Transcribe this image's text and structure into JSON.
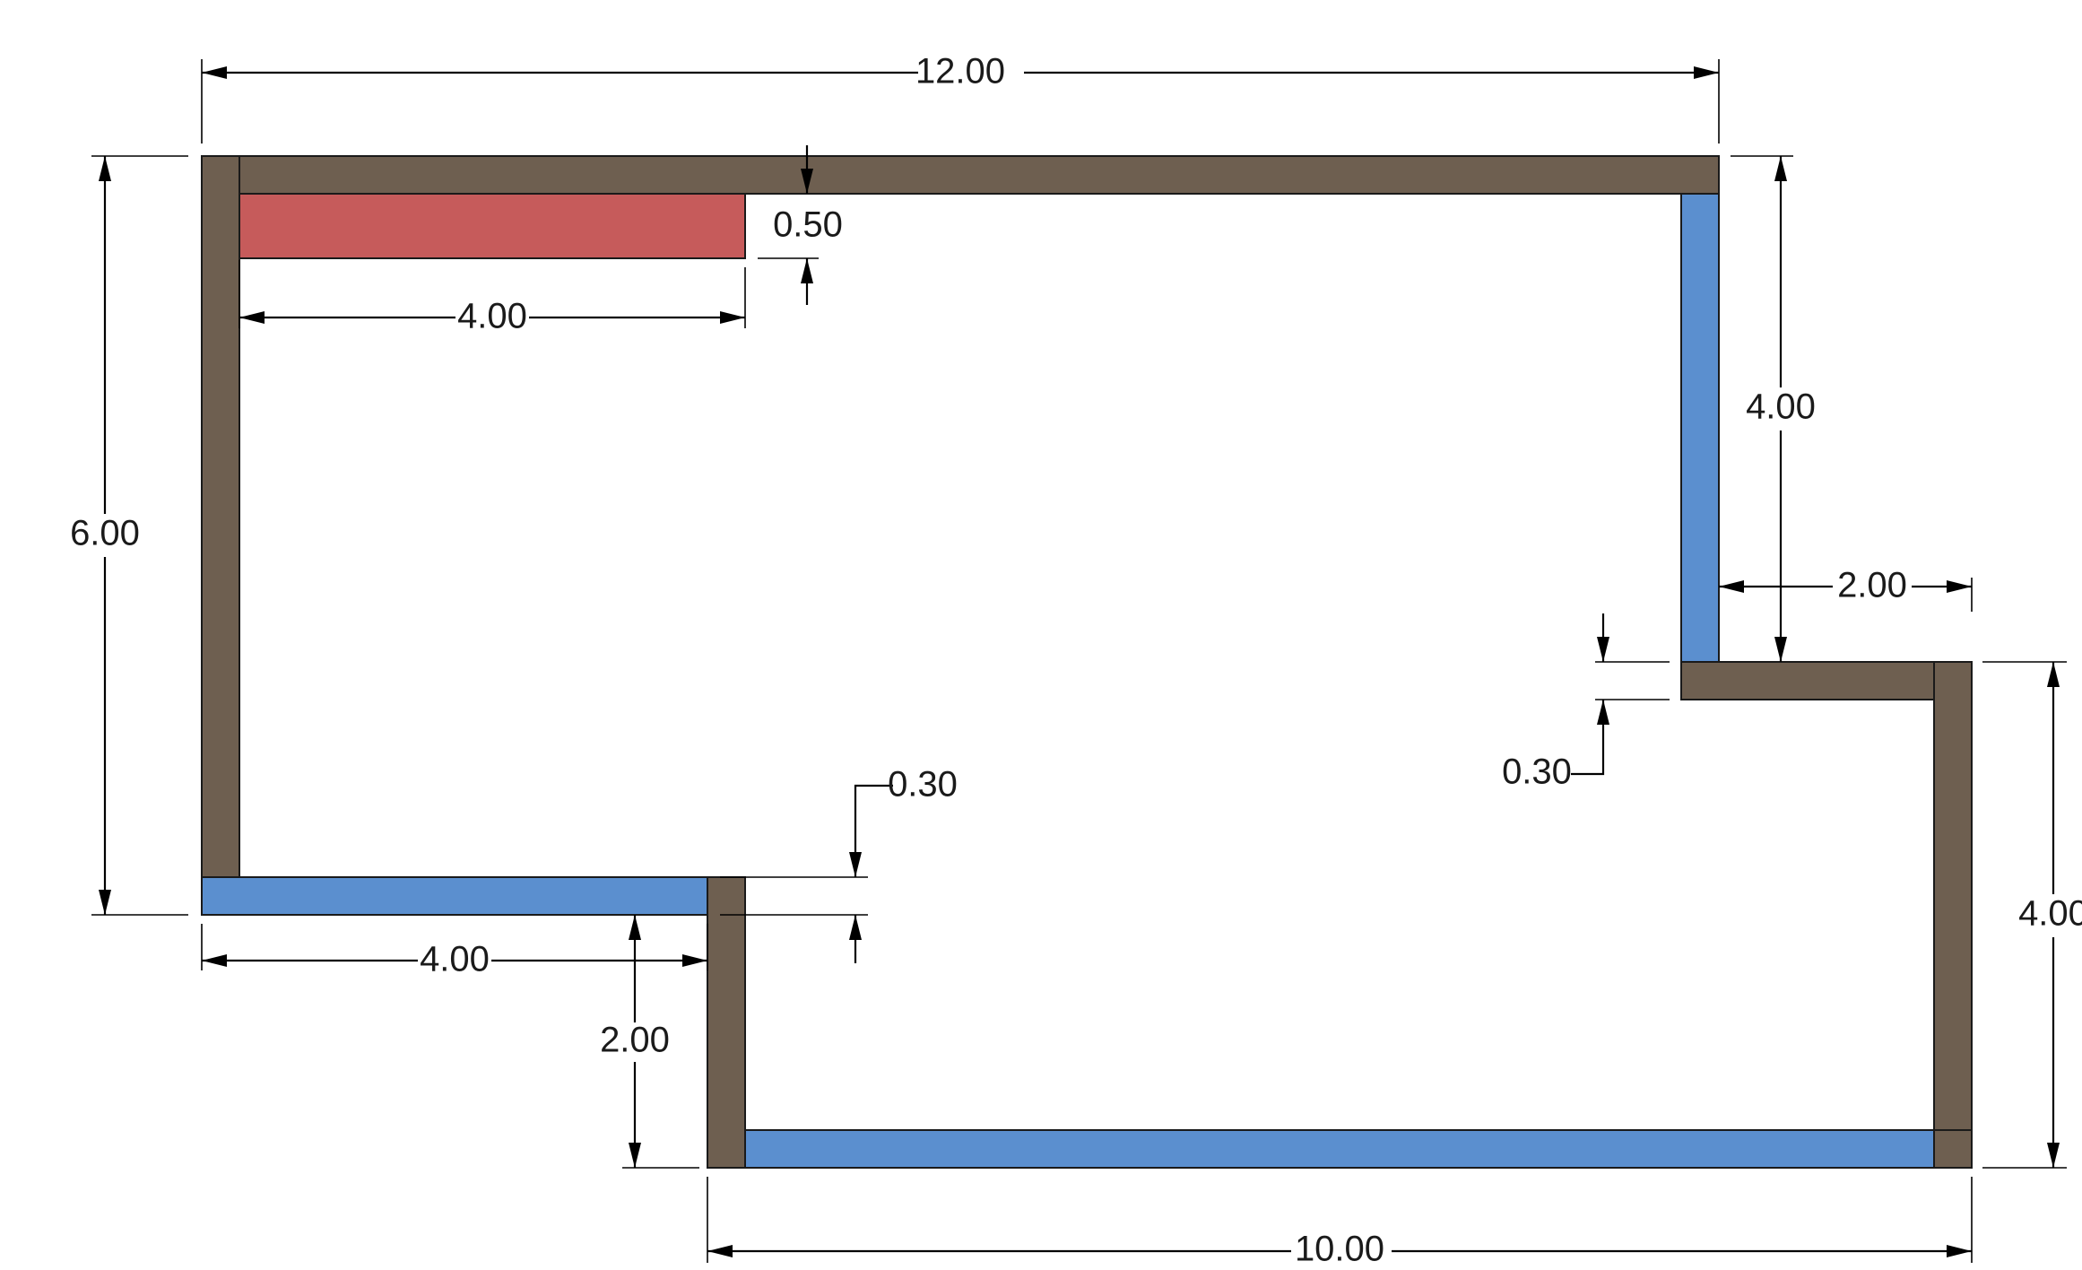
{
  "colors": {
    "wall": "#6e5f50",
    "window": "#5b8fcf",
    "counter": "#c65b5b",
    "line": "#000000",
    "text": "#1a1a1a",
    "background": "#ffffff"
  },
  "dimensions": {
    "top_width": "12.00",
    "left_height": "6.00",
    "right_upper_height": "4.00",
    "right_lower_height": "4.00",
    "step_width": "2.00",
    "bottom_width": "10.00",
    "counter_width": "4.00",
    "counter_depth": "0.50",
    "lower_left_window_width": "4.00",
    "step_down_height": "2.00",
    "wall_thickness_left": "0.30",
    "wall_thickness_right": "0.30"
  }
}
